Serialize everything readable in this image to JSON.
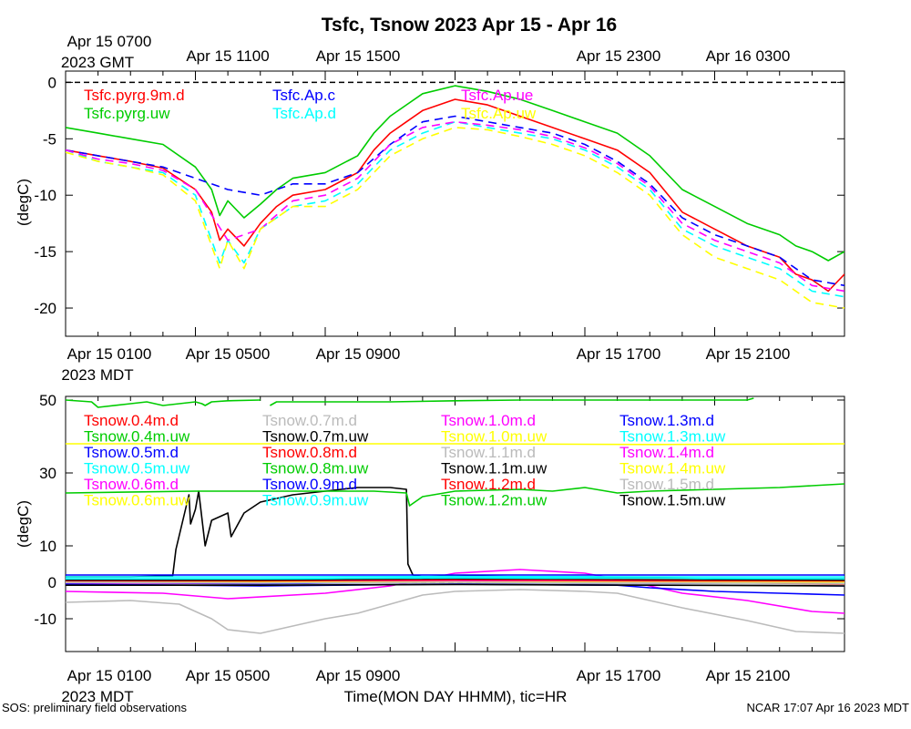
{
  "title": "Tsfc, Tsnow 2023 Apr 15 - Apr 16",
  "footer": {
    "left": "SOS: preliminary field observations",
    "right": "NCAR 17:07 Apr 16 2023 MDT",
    "xlabel": "Time(MON DAY HHMM), tic=HR"
  },
  "gmt_axis": {
    "first_label": [
      "Apr 15 0700",
      "2023 GMT"
    ],
    "labels": [
      "Apr 15 1100",
      "Apr 15 1500",
      "Apr 15 2300",
      "Apr 16 0300"
    ]
  },
  "mdt_axis": {
    "first_label": [
      "Apr 15 0100",
      "2023 MDT"
    ],
    "labels": [
      "Apr 15 0500",
      "Apr 15 0900",
      "Apr 15 1700",
      "Apr 15 2100"
    ]
  },
  "chart_data": [
    {
      "type": "line",
      "ylabel": "(degC)",
      "x_unit": "hours since Apr 15 0000 MDT",
      "xlim": [
        0,
        24
      ],
      "ylim": [
        -22.5,
        1
      ],
      "yticks": [
        0,
        -5,
        -10,
        -15,
        -20
      ],
      "reference_line": {
        "y": 0,
        "style": "dashed",
        "color": "#000000"
      },
      "series": [
        {
          "name": "Tsfc.pyrg.9m.d",
          "color": "#ff0000",
          "dashed": false,
          "x": [
            0,
            1,
            2,
            3,
            4,
            4.5,
            4.75,
            5,
            5.5,
            6,
            6.5,
            7,
            8,
            9,
            9.5,
            10,
            10.5,
            11,
            12,
            13,
            14,
            15,
            16,
            17,
            18,
            19,
            20,
            21,
            22,
            22.5,
            23,
            23.5,
            24
          ],
          "y": [
            -6,
            -6.5,
            -7,
            -7.6,
            -9.5,
            -11.5,
            -14,
            -13,
            -14.5,
            -12.5,
            -11,
            -10,
            -9.5,
            -8,
            -6,
            -4.5,
            -3.5,
            -2.5,
            -1.5,
            -2,
            -3,
            -4,
            -5,
            -6,
            -8,
            -11.5,
            -13,
            -14.5,
            -15.5,
            -17,
            -17.5,
            -18.5,
            -17
          ]
        },
        {
          "name": "Tsfc.pyrg.uw",
          "color": "#00cc00",
          "dashed": false,
          "x": [
            0,
            1,
            2,
            3,
            4,
            4.5,
            4.75,
            5,
            5.5,
            6,
            6.5,
            7,
            8,
            9,
            9.5,
            10,
            10.5,
            11,
            12,
            13,
            14,
            15,
            16,
            17,
            18,
            19,
            20,
            21,
            22,
            22.5,
            23,
            23.5,
            24
          ],
          "y": [
            -4,
            -4.5,
            -5,
            -5.5,
            -7.5,
            -9.5,
            -11.8,
            -10.5,
            -12,
            -10.8,
            -9.5,
            -8.5,
            -8,
            -6.5,
            -4.5,
            -3,
            -2,
            -1,
            -0.3,
            -0.8,
            -1.5,
            -2.5,
            -3.5,
            -4.5,
            -6.5,
            -9.5,
            -11,
            -12.5,
            -13.5,
            -14.5,
            -15,
            -15.8,
            -15
          ]
        },
        {
          "name": "Tsfc.Ap.c",
          "color": "#0000ff",
          "dashed": true,
          "x": [
            0,
            1,
            2,
            3,
            4,
            5,
            6,
            7,
            8,
            9,
            10,
            11,
            12,
            13,
            14,
            15,
            16,
            17,
            18,
            19,
            20,
            21,
            22,
            23,
            24
          ],
          "y": [
            -6,
            -6.5,
            -7,
            -7.5,
            -8.5,
            -9.5,
            -10,
            -9,
            -9,
            -8,
            -5.5,
            -3.5,
            -3,
            -3.5,
            -4,
            -4.5,
            -5.5,
            -7,
            -9,
            -12,
            -13.5,
            -14.5,
            -15.5,
            -17.5,
            -18
          ]
        },
        {
          "name": "Tsfc.Ap.d",
          "color": "#00ffff",
          "dashed": true,
          "x": [
            0,
            1,
            2,
            3,
            4,
            4.75,
            5,
            5.5,
            6,
            7,
            8,
            9,
            10,
            11,
            12,
            13,
            14,
            15,
            16,
            17,
            18,
            19,
            20,
            21,
            22,
            23,
            24
          ],
          "y": [
            -6,
            -7,
            -7.5,
            -8,
            -10,
            -16,
            -14,
            -16,
            -13,
            -11,
            -10.5,
            -9,
            -6,
            -4.5,
            -3.5,
            -4,
            -4.5,
            -5,
            -6,
            -7.5,
            -9.5,
            -13,
            -14.5,
            -15.5,
            -16.5,
            -18.5,
            -19
          ]
        },
        {
          "name": "Tsfc.Ap.ue",
          "color": "#ff00ff",
          "dashed": true,
          "x": [
            0,
            1,
            2,
            3,
            4,
            5,
            6,
            7,
            8,
            9,
            10,
            11,
            12,
            13,
            14,
            15,
            16,
            17,
            18,
            19,
            20,
            21,
            22,
            23,
            24
          ],
          "y": [
            -6,
            -6.8,
            -7.2,
            -7.8,
            -9.5,
            -14,
            -13,
            -10.5,
            -10,
            -8.5,
            -5.5,
            -4,
            -3.5,
            -3.8,
            -4.2,
            -4.8,
            -5.8,
            -7.2,
            -9.2,
            -12.5,
            -14,
            -15,
            -16,
            -18,
            -18.5
          ]
        },
        {
          "name": "Tsfc.Ap.uw",
          "color": "#ffff00",
          "dashed": true,
          "x": [
            0,
            1,
            2,
            3,
            4,
            4.75,
            5,
            5.5,
            6,
            7,
            8,
            9,
            10,
            11,
            12,
            13,
            14,
            15,
            16,
            17,
            18,
            19,
            20,
            21,
            22,
            23,
            24
          ],
          "y": [
            -6.2,
            -7,
            -7.5,
            -8.2,
            -10.5,
            -16.5,
            -14,
            -16.5,
            -13,
            -11,
            -11,
            -9.5,
            -6.5,
            -5,
            -4,
            -4.2,
            -4.8,
            -5.5,
            -6.5,
            -8,
            -10,
            -13.5,
            -15.5,
            -16.5,
            -17.5,
            -19.5,
            -20
          ]
        }
      ]
    },
    {
      "type": "line",
      "ylabel": "(degC)",
      "x_unit": "hours since Apr 15 0000 MDT",
      "xlim": [
        0,
        24
      ],
      "ylim": [
        -19,
        51
      ],
      "yticks": [
        50,
        30,
        10,
        0,
        -10
      ],
      "reference_line": {
        "y": 0,
        "style": "dashed",
        "color": "#000000"
      },
      "series": [
        {
          "name": "Tsnow.0.4m.d",
          "color": "#ff0000",
          "x": [
            0,
            6,
            12,
            18,
            24
          ],
          "y": [
            0,
            -0.3,
            0.5,
            0.2,
            -0.5
          ]
        },
        {
          "name": "Tsnow.0.4m.uw",
          "color": "#00cc00",
          "x": [
            0,
            0.8,
            1,
            2,
            2.5,
            3,
            4,
            4.2,
            4.3,
            4.5,
            5,
            6
          ],
          "y": [
            50,
            49.5,
            48,
            49,
            49.5,
            48.5,
            49.5,
            49,
            48.5,
            49.5,
            49.8,
            50
          ]
        },
        {
          "name": "Tsnow.0.5m.d",
          "color": "#0000ff",
          "x": [
            0,
            6,
            12,
            18,
            24
          ],
          "y": [
            -0.5,
            -0.5,
            0.3,
            -0.5,
            -1
          ]
        },
        {
          "name": "Tsnow.0.5m.uw",
          "color": "#00ffff",
          "x": [
            0,
            6,
            12,
            18,
            24
          ],
          "y": [
            0.8,
            0.8,
            1.2,
            1,
            0.8
          ]
        },
        {
          "name": "Tsnow.0.6m.d",
          "color": "#ff00ff",
          "x": [
            0,
            3,
            5,
            8,
            10,
            12,
            14,
            16,
            17.5,
            19,
            21,
            23,
            24
          ],
          "y": [
            -2.5,
            -3,
            -4.5,
            -3,
            -1,
            2.5,
            3.5,
            2.5,
            0,
            -3,
            -5,
            -8,
            -8.5
          ]
        },
        {
          "name": "Tsnow.0.6m.uw",
          "color": "#ffff00",
          "x": [
            0,
            6,
            12,
            18,
            24
          ],
          "y": [
            0,
            0.2,
            0.5,
            0.3,
            0
          ]
        },
        {
          "name": "Tsnow.0.7m.d",
          "color": "#bbbbbb",
          "x": [
            0,
            2,
            3.5,
            4.5,
            5,
            6,
            7,
            8,
            9,
            10,
            11,
            12,
            14,
            16,
            17,
            19,
            21,
            22.5,
            24
          ],
          "y": [
            -5.5,
            -5,
            -6,
            -10,
            -13,
            -14,
            -12,
            -10,
            -8.5,
            -6,
            -3.5,
            -2.5,
            -2,
            -2.5,
            -3,
            -7,
            -10.5,
            -13.5,
            -14
          ]
        },
        {
          "name": "Tsnow.0.7m.uw",
          "color": "#000000",
          "x": [
            0,
            1,
            2,
            3.3,
            3.4,
            3.8,
            3.85,
            4,
            4.1,
            4.3,
            4.5,
            5,
            5.1,
            5.5,
            6,
            7,
            8,
            9,
            10,
            10.5,
            10.55,
            10.7,
            11,
            12,
            14,
            16,
            18,
            20,
            22,
            24
          ],
          "y": [
            1.5,
            1.5,
            1.5,
            1.8,
            9,
            24,
            16,
            20,
            25,
            10,
            17,
            19,
            12.5,
            19,
            22,
            24,
            25,
            26,
            26,
            25.5,
            5,
            2,
            1.5,
            1.8,
            1.5,
            1.5,
            1.2,
            1,
            1,
            1
          ]
        },
        {
          "name": "Tsnow.0.8m.d",
          "color": "#ff0000",
          "x": [
            0,
            8,
            12,
            17,
            20,
            24
          ],
          "y": [
            0.5,
            0.5,
            1.5,
            1,
            0.5,
            0.2
          ]
        },
        {
          "name": "Tsnow.0.8m.uw",
          "color": "#00cc00",
          "x": [
            0,
            4,
            6,
            8,
            9.5,
            10.5,
            10.6,
            11,
            12,
            14,
            15,
            16,
            17,
            18,
            20,
            22,
            24
          ],
          "y": [
            24.5,
            25,
            25,
            25,
            25,
            24.5,
            21,
            23.5,
            25,
            25.5,
            25,
            26,
            24.5,
            25,
            25.5,
            26,
            27
          ]
        },
        {
          "name": "Tsnow.0.9m.d",
          "color": "#0000ff",
          "x": [
            0,
            6,
            12,
            18,
            24
          ],
          "y": [
            2,
            2,
            2,
            2,
            2
          ]
        },
        {
          "name": "Tsnow.0.9m.uw",
          "color": "#00ffff",
          "x": [
            0,
            6,
            12,
            18,
            24
          ],
          "y": [
            1.5,
            1.5,
            1.6,
            1.5,
            1.5
          ]
        },
        {
          "name": "Tsnow.1.0m.d",
          "color": "#ff00ff",
          "x": [
            0,
            6,
            12,
            18,
            24
          ],
          "y": [
            -0.2,
            -0.2,
            0.3,
            0,
            -0.2
          ]
        },
        {
          "name": "Tsnow.1.0m.uw",
          "color": "#ffff00",
          "x": [
            0,
            6,
            12,
            18,
            24
          ],
          "y": [
            38,
            38,
            38,
            37.8,
            38
          ]
        },
        {
          "name": "Tsnow.1.1m.d",
          "color": "#bbbbbb",
          "x": [
            0,
            6,
            12,
            18,
            24
          ],
          "y": [
            -0.5,
            -0.8,
            -0.4,
            -0.6,
            -0.8
          ]
        },
        {
          "name": "Tsnow.1.1m.uw",
          "color": "#000000",
          "x": [
            0,
            6,
            12,
            18,
            24
          ],
          "y": [
            0.5,
            0.5,
            0.8,
            0.6,
            0.5
          ]
        },
        {
          "name": "Tsnow.1.2m.d",
          "color": "#ff0000",
          "x": [
            0,
            6,
            12,
            18,
            24
          ],
          "y": [
            0.2,
            0.2,
            0.6,
            0.4,
            0.2
          ]
        },
        {
          "name": "Tsnow.1.2m.uw",
          "color": "#00cc00",
          "x": [
            6.3,
            6.5,
            8,
            10,
            12,
            14,
            16,
            18,
            20,
            21,
            21.2
          ],
          "y": [
            48.5,
            49.5,
            49.5,
            49.5,
            49.8,
            50,
            50,
            50,
            50,
            50,
            50.5
          ]
        },
        {
          "name": "Tsnow.1.3m.d",
          "color": "#0000ff",
          "x": [
            0,
            6,
            12,
            17,
            18,
            20,
            22,
            24
          ],
          "y": [
            -0.5,
            -1,
            -0.5,
            -0.8,
            -1.5,
            -2.5,
            -3,
            -3.5
          ]
        },
        {
          "name": "Tsnow.1.3m.uw",
          "color": "#00ffff",
          "x": [
            0,
            6,
            12,
            18,
            24
          ],
          "y": [
            1,
            1,
            1.2,
            1.1,
            1
          ]
        },
        {
          "name": "Tsnow.1.4m.d",
          "color": "#ff00ff",
          "x": [
            0,
            6,
            12,
            18,
            24
          ],
          "y": [
            0,
            0,
            0.3,
            0.1,
            0
          ]
        },
        {
          "name": "Tsnow.1.4m.uw",
          "color": "#ffff00",
          "x": [
            0,
            6,
            12,
            18,
            24
          ],
          "y": [
            0,
            0,
            0.1,
            0,
            0
          ]
        },
        {
          "name": "Tsnow.1.5m.d",
          "color": "#bbbbbb",
          "x": [
            0,
            6,
            12,
            18,
            24
          ],
          "y": [
            0,
            -0.2,
            0,
            -0.2,
            -0.3
          ]
        },
        {
          "name": "Tsnow.1.5m.uw",
          "color": "#000000",
          "x": [
            0,
            6,
            12,
            18,
            24
          ],
          "y": [
            -0.8,
            -0.8,
            -0.6,
            -0.8,
            -1
          ]
        }
      ]
    }
  ]
}
